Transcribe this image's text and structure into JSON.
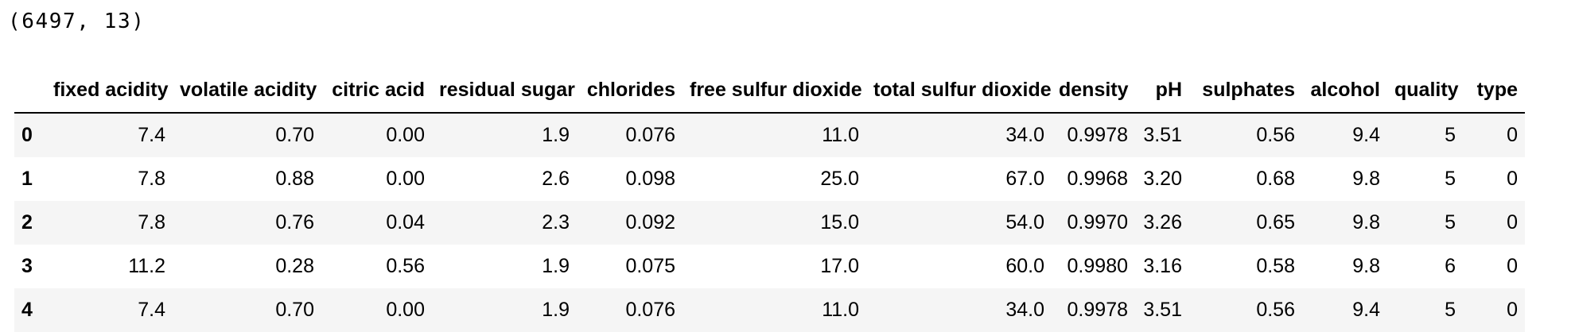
{
  "shape_output": "(6497, 13)",
  "table": {
    "index_header": "",
    "columns": [
      "fixed acidity",
      "volatile acidity",
      "citric acid",
      "residual sugar",
      "chlorides",
      "free sulfur dioxide",
      "total sulfur dioxide",
      "density",
      "pH",
      "sulphates",
      "alcohol",
      "quality",
      "type"
    ],
    "rows": [
      {
        "index": "0",
        "values": [
          "7.4",
          "0.70",
          "0.00",
          "1.9",
          "0.076",
          "11.0",
          "34.0",
          "0.9978",
          "3.51",
          "0.56",
          "9.4",
          "5",
          "0"
        ]
      },
      {
        "index": "1",
        "values": [
          "7.8",
          "0.88",
          "0.00",
          "2.6",
          "0.098",
          "25.0",
          "67.0",
          "0.9968",
          "3.20",
          "0.68",
          "9.8",
          "5",
          "0"
        ]
      },
      {
        "index": "2",
        "values": [
          "7.8",
          "0.76",
          "0.04",
          "2.3",
          "0.092",
          "15.0",
          "54.0",
          "0.9970",
          "3.26",
          "0.65",
          "9.8",
          "5",
          "0"
        ]
      },
      {
        "index": "3",
        "values": [
          "11.2",
          "0.28",
          "0.56",
          "1.9",
          "0.075",
          "17.0",
          "60.0",
          "0.9980",
          "3.16",
          "0.58",
          "9.8",
          "6",
          "0"
        ]
      },
      {
        "index": "4",
        "values": [
          "7.4",
          "0.70",
          "0.00",
          "1.9",
          "0.076",
          "11.0",
          "34.0",
          "0.9978",
          "3.51",
          "0.56",
          "9.4",
          "5",
          "0"
        ]
      }
    ],
    "colors": {
      "stripe": "#f5f5f5",
      "text": "#000000",
      "header_border": "#000000",
      "background": "#ffffff"
    }
  }
}
